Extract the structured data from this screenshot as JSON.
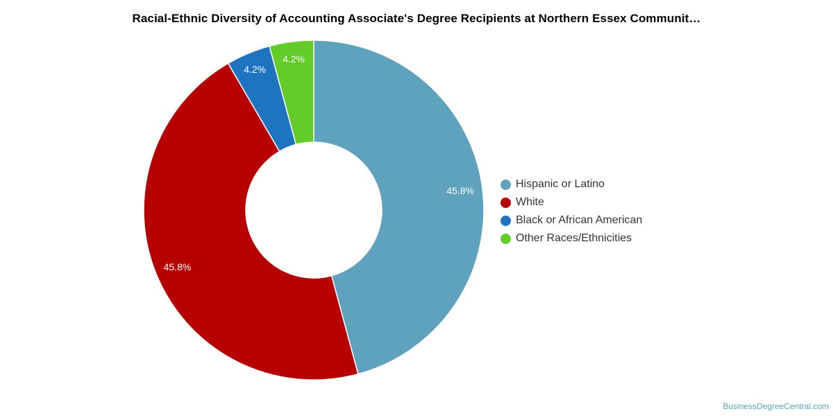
{
  "chart_data": {
    "type": "pie",
    "variant": "donut",
    "title": "Racial-Ethnic Diversity of Accounting Associate's Degree Recipients at Northern Essex Communit…",
    "legend_position": "right",
    "slices": [
      {
        "name": "Hispanic or Latino",
        "value": 45.8,
        "label": "45.8%",
        "color": "#5fa2be"
      },
      {
        "name": "White",
        "value": 45.8,
        "label": "45.8%",
        "color": "#b70000"
      },
      {
        "name": "Black or African American",
        "value": 4.2,
        "label": "4.2%",
        "color": "#1f74bf"
      },
      {
        "name": "Other Races/Ethnicities",
        "value": 4.2,
        "label": "4.2%",
        "color": "#63cc28"
      }
    ]
  },
  "credit": "BusinessDegreeCentral.com"
}
